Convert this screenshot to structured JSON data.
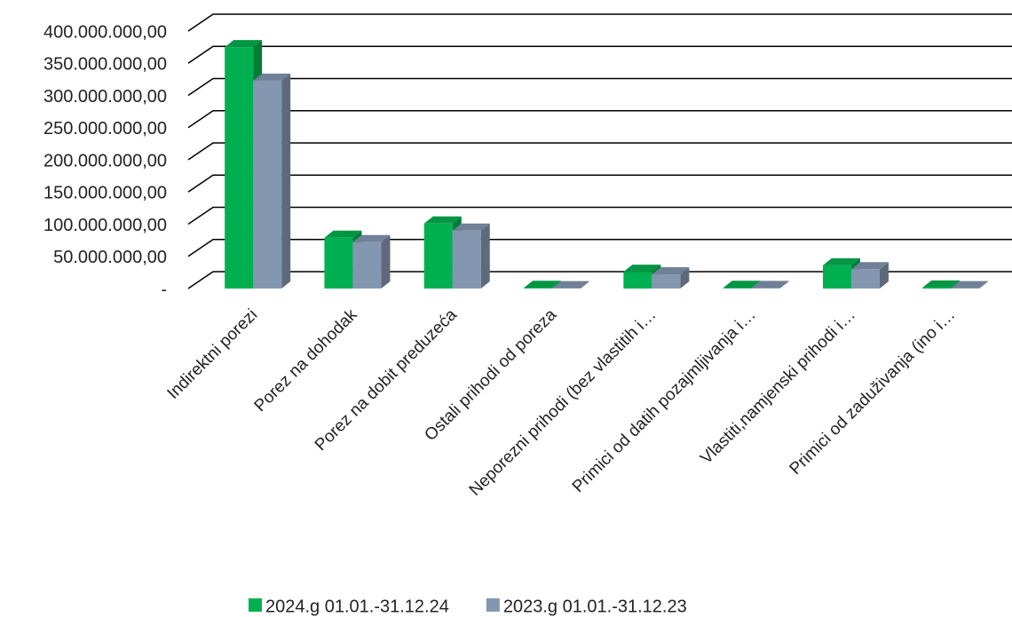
{
  "chart_data": {
    "type": "bar3d",
    "categories": [
      "Indirektni porezi",
      "Porez na dohodak",
      "Porez na dobit preduzeća",
      "Ostali prihodi od poreza",
      "Neporezni prihodi  (bez vlastitih i…",
      "Primici od datih pozajmljivanja i…",
      "Vlastiti,namjenski prihodi i…",
      "Primici od zaduživanja (ino i…"
    ],
    "series": [
      {
        "name": "2024.g 01.01.-31.12.24",
        "color": "#00b050",
        "values": [
          375000000,
          79000000,
          101000000,
          1000000,
          26000000,
          1000000,
          36000000,
          1500000
        ]
      },
      {
        "name": "2023.g 01.01.-31.12.23",
        "color": "#8497b0",
        "values": [
          323000000,
          72000000,
          90000000,
          500000,
          22000000,
          800000,
          30000000,
          500000
        ]
      }
    ],
    "ylim": [
      0,
      400000000
    ],
    "yticks": [
      {
        "value": 0,
        "label": "-"
      },
      {
        "value": 50000000,
        "label": "50.000.000,00"
      },
      {
        "value": 100000000,
        "label": "100.000.000,00"
      },
      {
        "value": 150000000,
        "label": "150.000.000,00"
      },
      {
        "value": 200000000,
        "label": "200.000.000,00"
      },
      {
        "value": 250000000,
        "label": "250.000.000,00"
      },
      {
        "value": 300000000,
        "label": "300.000.000,00"
      },
      {
        "value": 350000000,
        "label": "350.000.000,00"
      },
      {
        "value": 400000000,
        "label": "400.000.000,00"
      }
    ],
    "grid": true,
    "legend": "bottom"
  }
}
